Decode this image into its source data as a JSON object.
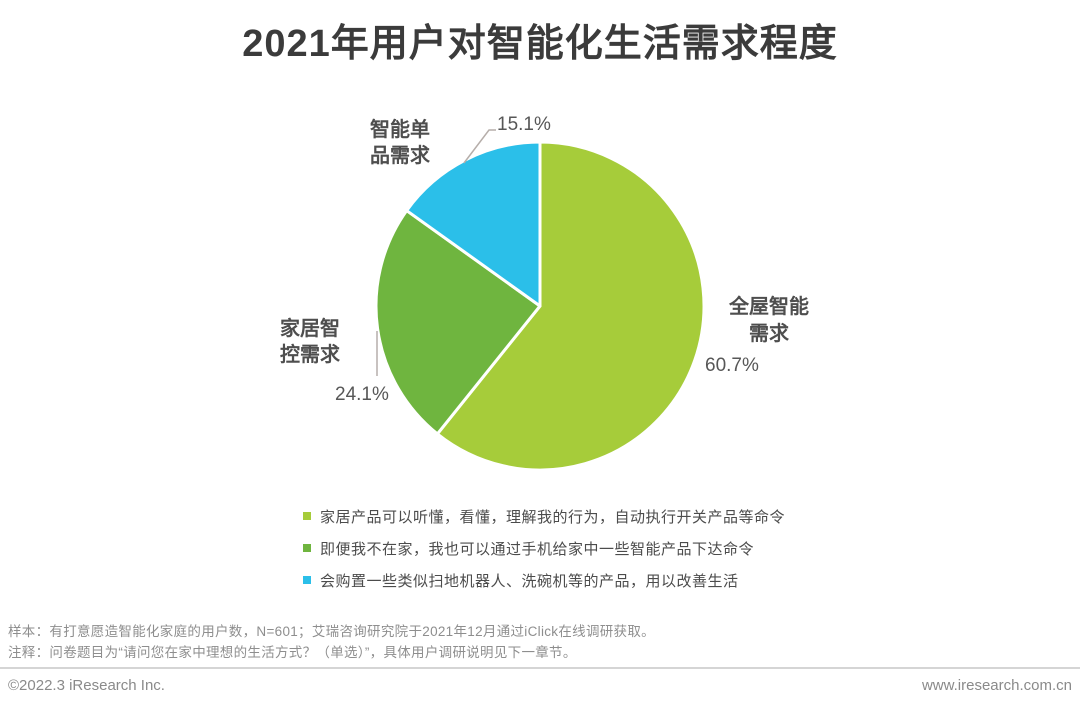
{
  "page": {
    "title": "2021年用户对智能化生活需求程度"
  },
  "chart_data": {
    "type": "pie",
    "title": "2021年用户对智能化生活需求程度",
    "unit": "%",
    "start_angle_deg": 0,
    "direction": "clockwise",
    "legend_position": "bottom",
    "series": [
      {
        "name": "全屋智能需求",
        "value": 60.7,
        "pct_label": "60.7%",
        "color": "#a6cc3a",
        "legend": "家居产品可以听懂，看懂，理解我的行为，自动执行开关产品等命令"
      },
      {
        "name": "家居智控需求",
        "value": 24.1,
        "pct_label": "24.1%",
        "color": "#6fb53f",
        "legend": "即便我不在家，我也可以通过手机给家中一些智能产品下达命令"
      },
      {
        "name": "智能单品需求",
        "value": 15.1,
        "pct_label": "15.1%",
        "color": "#2bbfe9",
        "legend": "会购置一些类似扫地机器人、洗碗机等的产品，用以改善生活"
      }
    ]
  },
  "notes": {
    "sample": "样本：有打意愿造智能化家庭的用户数，N=601；艾瑞咨询研究院于2021年12月通过iClick在线调研获取。",
    "annotation": "注释：问卷题目为“请问您在家中理想的生活方式？（单选）”，具体用户调研说明见下一章节。"
  },
  "footer": {
    "copyright": "©2022.3 iResearch Inc.",
    "website": "www.iresearch.com.cn"
  },
  "colors": {
    "title_text": "#3b3b3b",
    "label_text": "#4e4e4e",
    "legend_text": "#4c4c4c",
    "note_text": "#8e8e8e",
    "footer_text": "#8a8a8a",
    "leader_line": "#b6aeaa",
    "divider": "#d5d5d5",
    "slice_gap": "#ffffff"
  }
}
